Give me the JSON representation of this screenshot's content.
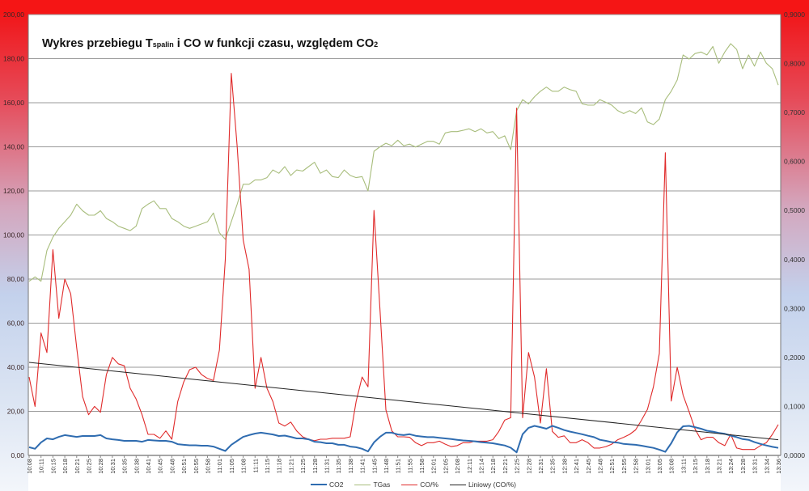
{
  "chart_data": {
    "type": "line",
    "title_parts": {
      "a": "Wykres przebiegu T",
      "a_sub": "spalin",
      "b": " i CO w funkcji czasu, względem CO",
      "b_sub": "2"
    },
    "x_tick_labels": [
      "10:08",
      "10:11",
      "10:15",
      "10:18",
      "10:21",
      "10:25",
      "10:28",
      "10:31",
      "10:35",
      "10:38",
      "10:41",
      "10:45",
      "10:48",
      "10:51",
      "10:55",
      "10:58",
      "11:01",
      "11:05",
      "11:08",
      "11:11",
      "11:15",
      "11:18",
      "11:21",
      "11:25",
      "11:28",
      "11:31",
      "11:35",
      "11:38",
      "11:41",
      "11:45",
      "11:48",
      "11:51",
      "11:55",
      "11:58",
      "12:01",
      "12:05",
      "12:08",
      "12:11",
      "12:14",
      "12:18",
      "12:21",
      "12:25",
      "12:28",
      "12:31",
      "12:35",
      "12:38",
      "12:41",
      "12:45",
      "12:48",
      "12:51",
      "12:55",
      "12:58",
      "13:01",
      "13:05",
      "13:08",
      "13:11",
      "13:15",
      "13:18",
      "13:21",
      "13:24",
      "13:28",
      "13:31",
      "13:34",
      "13:36"
    ],
    "y_left": {
      "range": [
        0,
        200
      ],
      "ticks": [
        "0,00",
        "20,00",
        "40,00",
        "60,00",
        "80,00",
        "100,00",
        "120,00",
        "140,00",
        "160,00",
        "180,00",
        "200,00"
      ]
    },
    "y_right": {
      "range": [
        0,
        0.9
      ],
      "ticks": [
        "0,0000",
        "0,1000",
        "0,2000",
        "0,3000",
        "0,4000",
        "0,5000",
        "0,6000",
        "0,7000",
        "0,8000",
        "0,9000"
      ]
    },
    "grid": true,
    "legend_position": "bottom",
    "series": [
      {
        "name": "CO2",
        "axis": "left",
        "color": "#2f6cb0",
        "values": [
          3.7,
          3.0,
          5.9,
          7.7,
          7.3,
          8.4,
          9.2,
          8.8,
          8.4,
          8.8,
          8.8,
          8.8,
          9.2,
          7.7,
          7.3,
          7.0,
          6.6,
          6.6,
          6.6,
          6.2,
          7.0,
          6.8,
          6.6,
          6.6,
          6.2,
          5.1,
          4.8,
          4.6,
          4.6,
          4.4,
          4.4,
          4.0,
          3.0,
          2.0,
          4.8,
          6.6,
          8.4,
          9.2,
          9.9,
          10.3,
          9.9,
          9.5,
          8.8,
          9.0,
          8.4,
          7.7,
          7.7,
          7.3,
          6.2,
          6.0,
          5.5,
          5.5,
          4.8,
          4.8,
          4.0,
          3.7,
          3.0,
          1.8,
          5.9,
          8.4,
          10.3,
          10.3,
          9.5,
          9.2,
          9.6,
          8.9,
          8.6,
          8.3,
          8.3,
          8.0,
          7.7,
          7.4,
          7.1,
          6.8,
          6.6,
          6.4,
          6.0,
          5.8,
          5.5,
          5.0,
          4.5,
          3.5,
          1.4,
          9.6,
          12.5,
          13.4,
          12.8,
          12.1,
          13.4,
          12.5,
          11.5,
          10.8,
          10.2,
          9.6,
          8.9,
          8.3,
          7.1,
          6.6,
          6.0,
          5.8,
          5.2,
          5.0,
          4.8,
          4.4,
          3.9,
          3.4,
          2.6,
          1.6,
          5.5,
          10.5,
          13.2,
          13.4,
          12.8,
          12.1,
          11.2,
          10.8,
          10.2,
          9.8,
          9.0,
          8.3,
          7.4,
          7.1,
          6.0,
          5.2,
          4.5,
          3.9,
          3.4
        ]
      },
      {
        "name": "TGas",
        "axis": "left",
        "color": "#a8bd7c",
        "values": [
          79,
          81,
          79,
          93,
          99,
          103,
          106,
          109,
          114,
          111,
          109,
          109,
          111,
          107.5,
          106,
          104,
          103,
          102,
          104,
          112,
          114,
          115.5,
          112,
          112,
          107.5,
          106,
          104,
          103,
          104,
          105,
          106,
          110,
          101,
          98,
          106,
          114,
          123,
          123,
          125,
          125,
          126,
          129.5,
          128,
          131,
          127,
          129.5,
          129,
          131,
          133,
          128,
          129.5,
          126.5,
          126,
          129.5,
          127,
          126,
          126.5,
          120,
          138,
          140,
          141.6,
          140.5,
          143,
          140.5,
          141.2,
          139.9,
          141.2,
          142.5,
          142.5,
          141.2,
          146.3,
          146.9,
          146.9,
          147.5,
          148.2,
          146.9,
          148.2,
          146.3,
          146.9,
          143.7,
          145,
          138.7,
          156.4,
          161.4,
          159.5,
          162.7,
          165.2,
          167.1,
          165.2,
          165.2,
          167.1,
          165.9,
          165.2,
          159.5,
          158.9,
          158.9,
          161.4,
          160.2,
          158.9,
          156.4,
          155.1,
          156.4,
          155.1,
          157.7,
          151.3,
          150.1,
          152.6,
          161.4,
          165.2,
          170.3,
          181.7,
          179.8,
          182.3,
          183,
          181.7,
          185.5,
          177.9,
          183,
          186.8,
          184.2,
          175.4,
          181.7,
          176.6,
          183,
          177.9,
          175.4,
          168
        ]
      },
      {
        "name": "CO/%",
        "axis": "right",
        "color": "#e02b2b",
        "values": [
          0.16,
          0.1,
          0.25,
          0.21,
          0.42,
          0.28,
          0.36,
          0.33,
          0.22,
          0.12,
          0.083,
          0.1,
          0.088,
          0.165,
          0.2,
          0.187,
          0.183,
          0.137,
          0.115,
          0.083,
          0.043,
          0.043,
          0.035,
          0.05,
          0.033,
          0.11,
          0.15,
          0.175,
          0.18,
          0.165,
          0.157,
          0.153,
          0.215,
          0.4,
          0.78,
          0.63,
          0.44,
          0.38,
          0.137,
          0.2,
          0.137,
          0.11,
          0.066,
          0.06,
          0.068,
          0.05,
          0.038,
          0.033,
          0.03,
          0.033,
          0.033,
          0.035,
          0.035,
          0.035,
          0.038,
          0.11,
          0.16,
          0.14,
          0.5,
          0.3,
          0.093,
          0.05,
          0.038,
          0.038,
          0.037,
          0.026,
          0.02,
          0.026,
          0.026,
          0.029,
          0.023,
          0.018,
          0.02,
          0.026,
          0.026,
          0.029,
          0.029,
          0.029,
          0.032,
          0.049,
          0.072,
          0.077,
          0.709,
          0.077,
          0.21,
          0.16,
          0.066,
          0.177,
          0.049,
          0.037,
          0.04,
          0.026,
          0.026,
          0.032,
          0.026,
          0.015,
          0.015,
          0.018,
          0.023,
          0.032,
          0.037,
          0.043,
          0.052,
          0.072,
          0.094,
          0.14,
          0.208,
          0.618,
          0.111,
          0.18,
          0.123,
          0.089,
          0.054,
          0.032,
          0.037,
          0.037,
          0.026,
          0.02,
          0.043,
          0.015,
          0.012,
          0.012,
          0.012,
          0.02,
          0.026,
          0.043,
          0.063
        ]
      },
      {
        "name": "Liniowy (CO/%)",
        "axis": "right",
        "color": "#222222",
        "trend": {
          "start": 0.19,
          "end": 0.032
        }
      }
    ]
  }
}
